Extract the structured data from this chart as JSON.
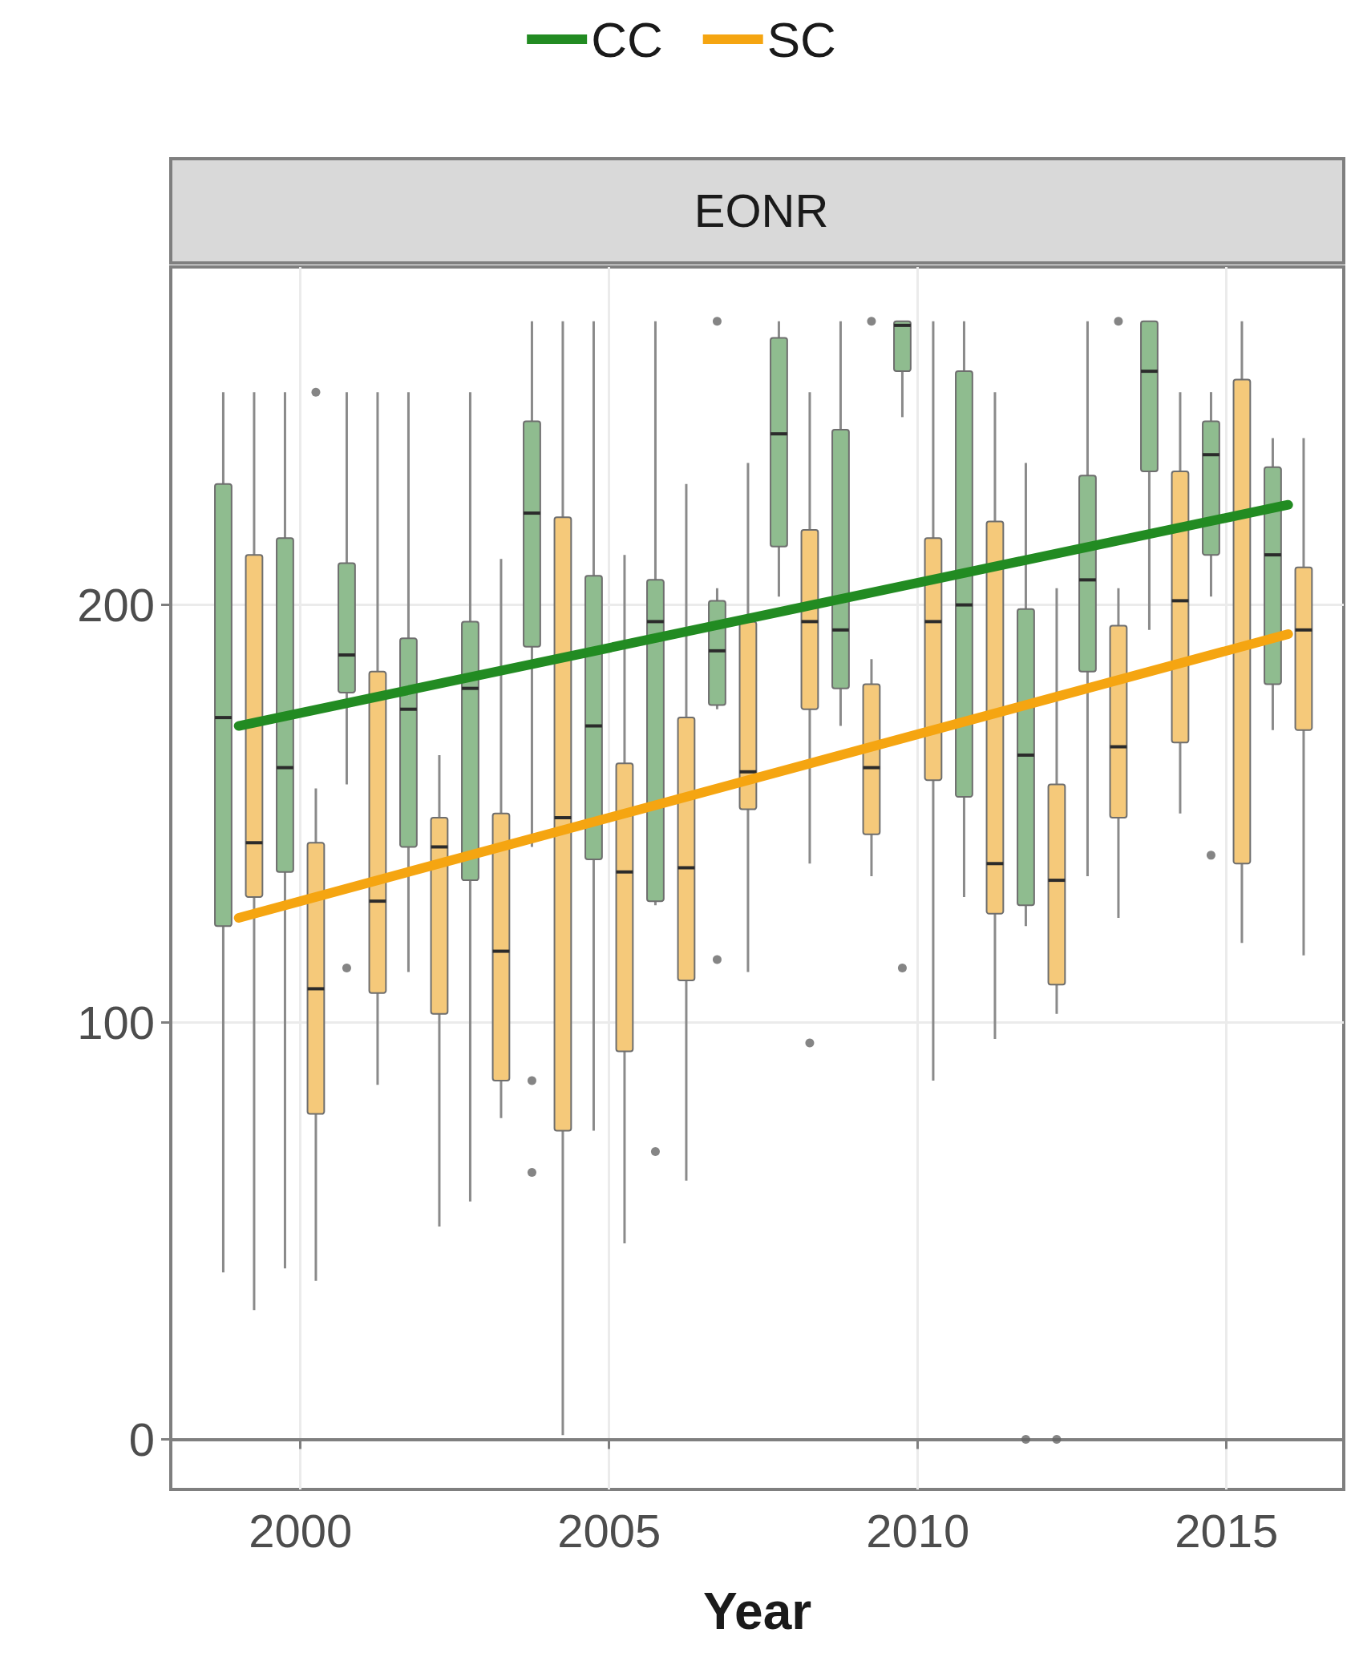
{
  "chart_data": {
    "type": "box",
    "title": "EONR",
    "xlabel": "Year",
    "legend": "top",
    "grid": true,
    "line_style": "solid",
    "xlim": [
      1997.9,
      2016.9
    ],
    "xticks": [
      2000,
      2005,
      2010,
      2015
    ],
    "ylim": [
      -12,
      281
    ],
    "yticks": [
      0,
      100,
      200
    ],
    "series": [
      {
        "color": "#8fbc8f",
        "x": [
          1999,
          2000,
          2001,
          2002,
          2003,
          2004,
          2005,
          2006,
          2007,
          2008,
          2009,
          2010,
          2011,
          2012,
          2013,
          2014,
          2015,
          2016
        ],
        "boxes": [
          {
            "low": 40,
            "q1": 123,
            "median": 173,
            "q3": 229,
            "high": 251
          },
          {
            "low": 41,
            "q1": 136,
            "median": 161,
            "q3": 216,
            "high": 251
          },
          {
            "low": 157,
            "q1": 179,
            "median": 188,
            "q3": 210,
            "high": 251,
            "outliers": [
              113
            ]
          },
          {
            "low": 112,
            "q1": 142,
            "median": 175,
            "q3": 192,
            "high": 251
          },
          {
            "low": 57,
            "q1": 134,
            "median": 180,
            "q3": 196,
            "high": 251
          },
          {
            "low": 142,
            "q1": 190,
            "median": 222,
            "q3": 244,
            "high": 268,
            "outliers": [
              86,
              64
            ]
          },
          {
            "low": 74,
            "q1": 139,
            "median": 171,
            "q3": 207,
            "high": 268
          },
          {
            "low": 128,
            "q1": 129,
            "median": 196,
            "q3": 206,
            "high": 268,
            "outliers": [
              69
            ]
          },
          {
            "low": 175,
            "q1": 176,
            "median": 189,
            "q3": 201,
            "high": 204,
            "outliers": [
              268,
              115
            ]
          },
          {
            "low": 202,
            "q1": 214,
            "median": 241,
            "q3": 264,
            "high": 268
          },
          {
            "low": 171,
            "q1": 180,
            "median": 194,
            "q3": 242,
            "high": 268
          },
          {
            "low": 245,
            "q1": 256,
            "median": 267,
            "q3": 268,
            "high": 268,
            "outliers": [
              113
            ]
          },
          {
            "low": 130,
            "q1": 154,
            "median": 200,
            "q3": 256,
            "high": 268
          },
          {
            "low": 123,
            "q1": 128,
            "median": 164,
            "q3": 199,
            "high": 234,
            "outliers": [
              0
            ]
          },
          {
            "low": 135,
            "q1": 184,
            "median": 206,
            "q3": 231,
            "high": 268
          },
          {
            "low": 194,
            "q1": 232,
            "median": 256,
            "q3": 268,
            "high": 268
          },
          {
            "low": 202,
            "q1": 212,
            "median": 236,
            "q3": 244,
            "high": 251,
            "outliers": [
              140
            ]
          },
          {
            "low": 170,
            "q1": 181,
            "median": 212,
            "q3": 233,
            "high": 240
          }
        ]
      },
      {
        "color": "#f5c97a",
        "x": [
          1999,
          2000,
          2001,
          2002,
          2003,
          2004,
          2005,
          2006,
          2007,
          2008,
          2009,
          2010,
          2011,
          2012,
          2013,
          2014,
          2015,
          2016
        ],
        "boxes": [
          {
            "low": 31,
            "q1": 130,
            "median": 143,
            "q3": 212,
            "high": 251
          },
          {
            "low": 38,
            "q1": 78,
            "median": 108,
            "q3": 143,
            "high": 156,
            "outliers": [
              251
            ]
          },
          {
            "low": 85,
            "q1": 107,
            "median": 129,
            "q3": 184,
            "high": 251
          },
          {
            "low": 51,
            "q1": 102,
            "median": 142,
            "q3": 149,
            "high": 164
          },
          {
            "low": 77,
            "q1": 86,
            "median": 117,
            "q3": 150,
            "high": 211
          },
          {
            "low": 1,
            "q1": 74,
            "median": 149,
            "q3": 221,
            "high": 268
          },
          {
            "low": 47,
            "q1": 93,
            "median": 136,
            "q3": 162,
            "high": 212
          },
          {
            "low": 62,
            "q1": 110,
            "median": 137,
            "q3": 173,
            "high": 229
          },
          {
            "low": 112,
            "q1": 151,
            "median": 160,
            "q3": 196,
            "high": 234
          },
          {
            "low": 138,
            "q1": 175,
            "median": 196,
            "q3": 218,
            "high": 251,
            "outliers": [
              95
            ]
          },
          {
            "low": 135,
            "q1": 145,
            "median": 161,
            "q3": 181,
            "high": 187,
            "outliers": [
              268
            ]
          },
          {
            "low": 86,
            "q1": 158,
            "median": 196,
            "q3": 216,
            "high": 268
          },
          {
            "low": 96,
            "q1": 126,
            "median": 138,
            "q3": 220,
            "high": 251
          },
          {
            "low": 102,
            "q1": 109,
            "median": 134,
            "q3": 157,
            "high": 204,
            "outliers": [
              0
            ]
          },
          {
            "low": 125,
            "q1": 149,
            "median": 166,
            "q3": 195,
            "high": 204,
            "outliers": [
              268
            ]
          },
          {
            "low": 150,
            "q1": 167,
            "median": 201,
            "q3": 232,
            "high": 251
          },
          {
            "low": 119,
            "q1": 138,
            "median": 190,
            "q3": 254,
            "high": 268
          },
          {
            "low": 116,
            "q1": 170,
            "median": 194,
            "q3": 209,
            "high": 240
          }
        ]
      },
      {
        "type": "line",
        "name": "CC",
        "color": "#228b22",
        "x": [
          1999,
          2016
        ],
        "values": [
          171,
          224
        ]
      },
      {
        "type": "line",
        "name": "SC",
        "color": "#f5a511",
        "x": [
          1999,
          2016
        ],
        "values": [
          125,
          193
        ]
      }
    ]
  }
}
